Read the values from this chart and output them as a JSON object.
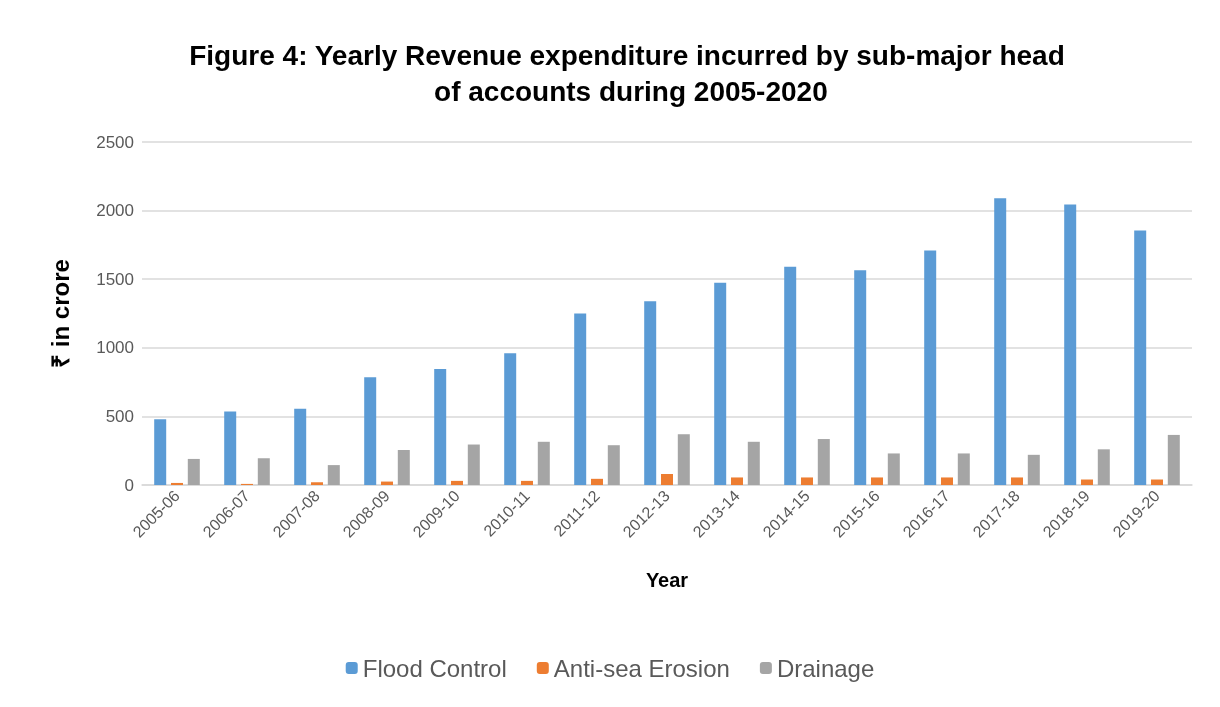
{
  "chart_data": {
    "type": "bar",
    "title": "Figure 4: Yearly Revenue expenditure incurred by sub-major head of accounts during 2005-2020",
    "xlabel": "Year",
    "ylabel": "₹ in crore",
    "categories": [
      "2005-06",
      "2006-07",
      "2007-08",
      "2008-09",
      "2009-10",
      "2010-11",
      "2011-12",
      "2012-13",
      "2013-14",
      "2014-15",
      "2015-16",
      "2016-17",
      "2017-18",
      "2018-19",
      "2019-20"
    ],
    "series": [
      {
        "name": "Flood Control",
        "color": "#5b9bd5",
        "values": [
          480,
          535,
          555,
          785,
          845,
          960,
          1250,
          1340,
          1475,
          1590,
          1565,
          1710,
          2090,
          2045,
          1855
        ]
      },
      {
        "name": "Anti-sea Erosion",
        "color": "#ed7d31",
        "values": [
          15,
          8,
          20,
          25,
          30,
          30,
          45,
          80,
          55,
          55,
          55,
          55,
          55,
          40,
          40
        ]
      },
      {
        "name": "Drainage",
        "color": "#a5a5a5",
        "values": [
          190,
          195,
          145,
          255,
          295,
          315,
          290,
          370,
          315,
          335,
          230,
          230,
          220,
          260,
          365
        ]
      }
    ],
    "ylim": [
      0,
      2500
    ],
    "yticks": [
      0,
      500,
      1000,
      1500,
      2000,
      2500
    ],
    "grid": "y",
    "legend": "bottom"
  }
}
